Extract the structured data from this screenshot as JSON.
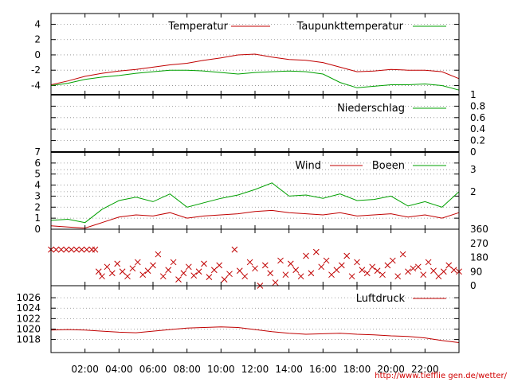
{
  "footer_url": "http://www.tiefflie gen.de/wetter/",
  "colors": {
    "red": "#c00000",
    "green": "#00a000",
    "grid": "#888888",
    "axis": "#000000"
  },
  "chart_data": [
    {
      "type": "line",
      "name": "temperature",
      "ylim": [
        -5.2,
        5.4
      ],
      "yticks": [
        "4",
        "2",
        "0",
        "-2",
        "-4"
      ],
      "ytick_values": [
        4,
        2,
        0,
        -2,
        -4
      ],
      "series": [
        {
          "name": "Temperatur",
          "color": "#c00000",
          "x": [
            0,
            1,
            2,
            3,
            4,
            5,
            6,
            7,
            8,
            9,
            10,
            11,
            12,
            13,
            14,
            15,
            16,
            17,
            18,
            19,
            20,
            21,
            22,
            23,
            24
          ],
          "values": [
            -3.9,
            -3.4,
            -2.8,
            -2.4,
            -2.1,
            -1.9,
            -1.6,
            -1.3,
            -1.1,
            -0.7,
            -0.4,
            0.0,
            0.1,
            -0.3,
            -0.6,
            -0.7,
            -1.0,
            -1.6,
            -2.2,
            -2.1,
            -1.9,
            -2.0,
            -2.0,
            -2.2,
            -3.1
          ]
        },
        {
          "name": "Taupunkttemperatur",
          "color": "#00a000",
          "x": [
            0,
            1,
            2,
            3,
            4,
            5,
            6,
            7,
            8,
            9,
            10,
            11,
            12,
            13,
            14,
            15,
            16,
            17,
            18,
            19,
            20,
            21,
            22,
            23,
            24
          ],
          "values": [
            -4.0,
            -3.7,
            -3.2,
            -2.9,
            -2.7,
            -2.4,
            -2.2,
            -2.0,
            -2.0,
            -2.1,
            -2.3,
            -2.5,
            -2.3,
            -2.2,
            -2.1,
            -2.2,
            -2.5,
            -3.6,
            -4.3,
            -4.1,
            -3.9,
            -3.9,
            -3.8,
            -4.0,
            -4.6
          ]
        }
      ]
    },
    {
      "type": "line",
      "name": "precipitation",
      "ylim": [
        0,
        1
      ],
      "yticks": [
        "1",
        "0.8",
        "0.6",
        "0.4",
        "0.2",
        "0"
      ],
      "ytick_values": [
        1,
        0.8,
        0.6,
        0.4,
        0.2,
        0
      ],
      "series": [
        {
          "name": "Niederschlag",
          "color": "#00a000",
          "x": [
            0,
            24
          ],
          "values": [
            0,
            0
          ]
        }
      ]
    },
    {
      "type": "line",
      "name": "wind",
      "ylim": [
        0,
        7
      ],
      "yticks": [
        "7",
        "6",
        "5",
        "4",
        "3",
        "2",
        "1",
        "0"
      ],
      "ytick_values": [
        7,
        6,
        5,
        4,
        3,
        2,
        1,
        0
      ],
      "right_labels": [
        "3",
        "2"
      ],
      "right_label_values": [
        4.3,
        2.3
      ],
      "series": [
        {
          "name": "Wind",
          "color": "#c00000",
          "x": [
            0,
            1,
            2,
            3,
            4,
            5,
            6,
            7,
            8,
            9,
            10,
            11,
            12,
            13,
            14,
            15,
            16,
            17,
            18,
            19,
            20,
            21,
            22,
            23,
            24
          ],
          "values": [
            0.3,
            0.2,
            0.1,
            0.6,
            1.1,
            1.3,
            1.2,
            1.5,
            1.0,
            1.2,
            1.3,
            1.4,
            1.6,
            1.7,
            1.5,
            1.4,
            1.3,
            1.5,
            1.2,
            1.3,
            1.4,
            1.1,
            1.3,
            1.0,
            1.5
          ]
        },
        {
          "name": "Boeen",
          "color": "#00a000",
          "x": [
            0,
            1,
            2,
            3,
            4,
            5,
            6,
            7,
            8,
            9,
            10,
            11,
            12,
            13,
            14,
            15,
            16,
            17,
            18,
            19,
            20,
            21,
            22,
            23,
            24
          ],
          "values": [
            0.8,
            0.9,
            0.6,
            1.8,
            2.6,
            2.9,
            2.5,
            3.2,
            2.0,
            2.4,
            2.8,
            3.1,
            3.6,
            4.2,
            3.0,
            3.1,
            2.8,
            3.2,
            2.6,
            2.7,
            3.0,
            2.1,
            2.5,
            2.0,
            3.4
          ]
        }
      ]
    },
    {
      "type": "scatter",
      "name": "wind_direction",
      "ylim": [
        0,
        360
      ],
      "right_labels": [
        "360",
        "270",
        "180",
        "90",
        "0"
      ],
      "right_label_values": [
        360,
        270,
        180,
        90,
        0
      ],
      "series": [
        {
          "name": "Windrichtung",
          "color": "#c00000",
          "x": [
            0,
            0.3,
            0.6,
            0.9,
            1.2,
            1.5,
            1.8,
            2.1,
            2.4,
            2.6,
            2.8,
            3.0,
            3.3,
            3.6,
            3.9,
            4.2,
            4.5,
            4.8,
            5.1,
            5.4,
            5.7,
            6.0,
            6.3,
            6.6,
            6.9,
            7.2,
            7.5,
            7.8,
            8.1,
            8.4,
            8.7,
            9.0,
            9.3,
            9.6,
            9.9,
            10.2,
            10.5,
            10.8,
            11.1,
            11.4,
            11.7,
            12.0,
            12.3,
            12.6,
            12.9,
            13.2,
            13.5,
            13.8,
            14.1,
            14.4,
            14.7,
            15.0,
            15.3,
            15.6,
            15.9,
            16.2,
            16.5,
            16.8,
            17.1,
            17.4,
            17.7,
            18.0,
            18.3,
            18.6,
            18.9,
            19.2,
            19.5,
            19.8,
            20.1,
            20.4,
            20.7,
            21.0,
            21.3,
            21.6,
            21.9,
            22.2,
            22.5,
            22.8,
            23.1,
            23.4,
            23.7,
            24.0
          ],
          "values": [
            230,
            230,
            230,
            230,
            230,
            230,
            230,
            230,
            230,
            230,
            90,
            60,
            120,
            80,
            140,
            90,
            60,
            110,
            150,
            70,
            95,
            130,
            200,
            60,
            100,
            150,
            40,
            80,
            120,
            65,
            90,
            140,
            55,
            100,
            130,
            40,
            75,
            230,
            95,
            60,
            150,
            110,
            0,
            130,
            80,
            20,
            160,
            70,
            140,
            100,
            60,
            190,
            80,
            215,
            120,
            160,
            70,
            100,
            130,
            190,
            60,
            150,
            100,
            80,
            120,
            95,
            70,
            130,
            160,
            60,
            200,
            90,
            110,
            120,
            70,
            150,
            95,
            60,
            90,
            130,
            100,
            90
          ]
        }
      ]
    },
    {
      "type": "line",
      "name": "pressure",
      "ylim": [
        1015.5,
        1028.3
      ],
      "yticks": [
        "1026",
        "1024",
        "1022",
        "1020",
        "1018"
      ],
      "ytick_values": [
        1026,
        1024,
        1022,
        1020,
        1018
      ],
      "series": [
        {
          "name": "Luftdruck",
          "color": "#c00000",
          "x": [
            0,
            1,
            2,
            3,
            4,
            5,
            6,
            7,
            8,
            9,
            10,
            11,
            12,
            13,
            14,
            15,
            16,
            17,
            18,
            19,
            20,
            21,
            22,
            23,
            24
          ],
          "values": [
            1019.8,
            1019.9,
            1019.8,
            1019.6,
            1019.4,
            1019.3,
            1019.6,
            1019.9,
            1020.2,
            1020.3,
            1020.4,
            1020.3,
            1019.9,
            1019.5,
            1019.2,
            1019.0,
            1019.1,
            1019.2,
            1019.0,
            1018.9,
            1018.7,
            1018.6,
            1018.3,
            1017.8,
            1017.4
          ]
        }
      ]
    }
  ],
  "x_axis": {
    "ticks": [
      "02:00",
      "04:00",
      "06:00",
      "08:00",
      "10:00",
      "12:00",
      "14:00",
      "16:00",
      "18:00",
      "20:00",
      "22:00"
    ],
    "tick_hours": [
      2,
      4,
      6,
      8,
      10,
      12,
      14,
      16,
      18,
      20,
      22
    ],
    "xlim": [
      0,
      24
    ]
  }
}
